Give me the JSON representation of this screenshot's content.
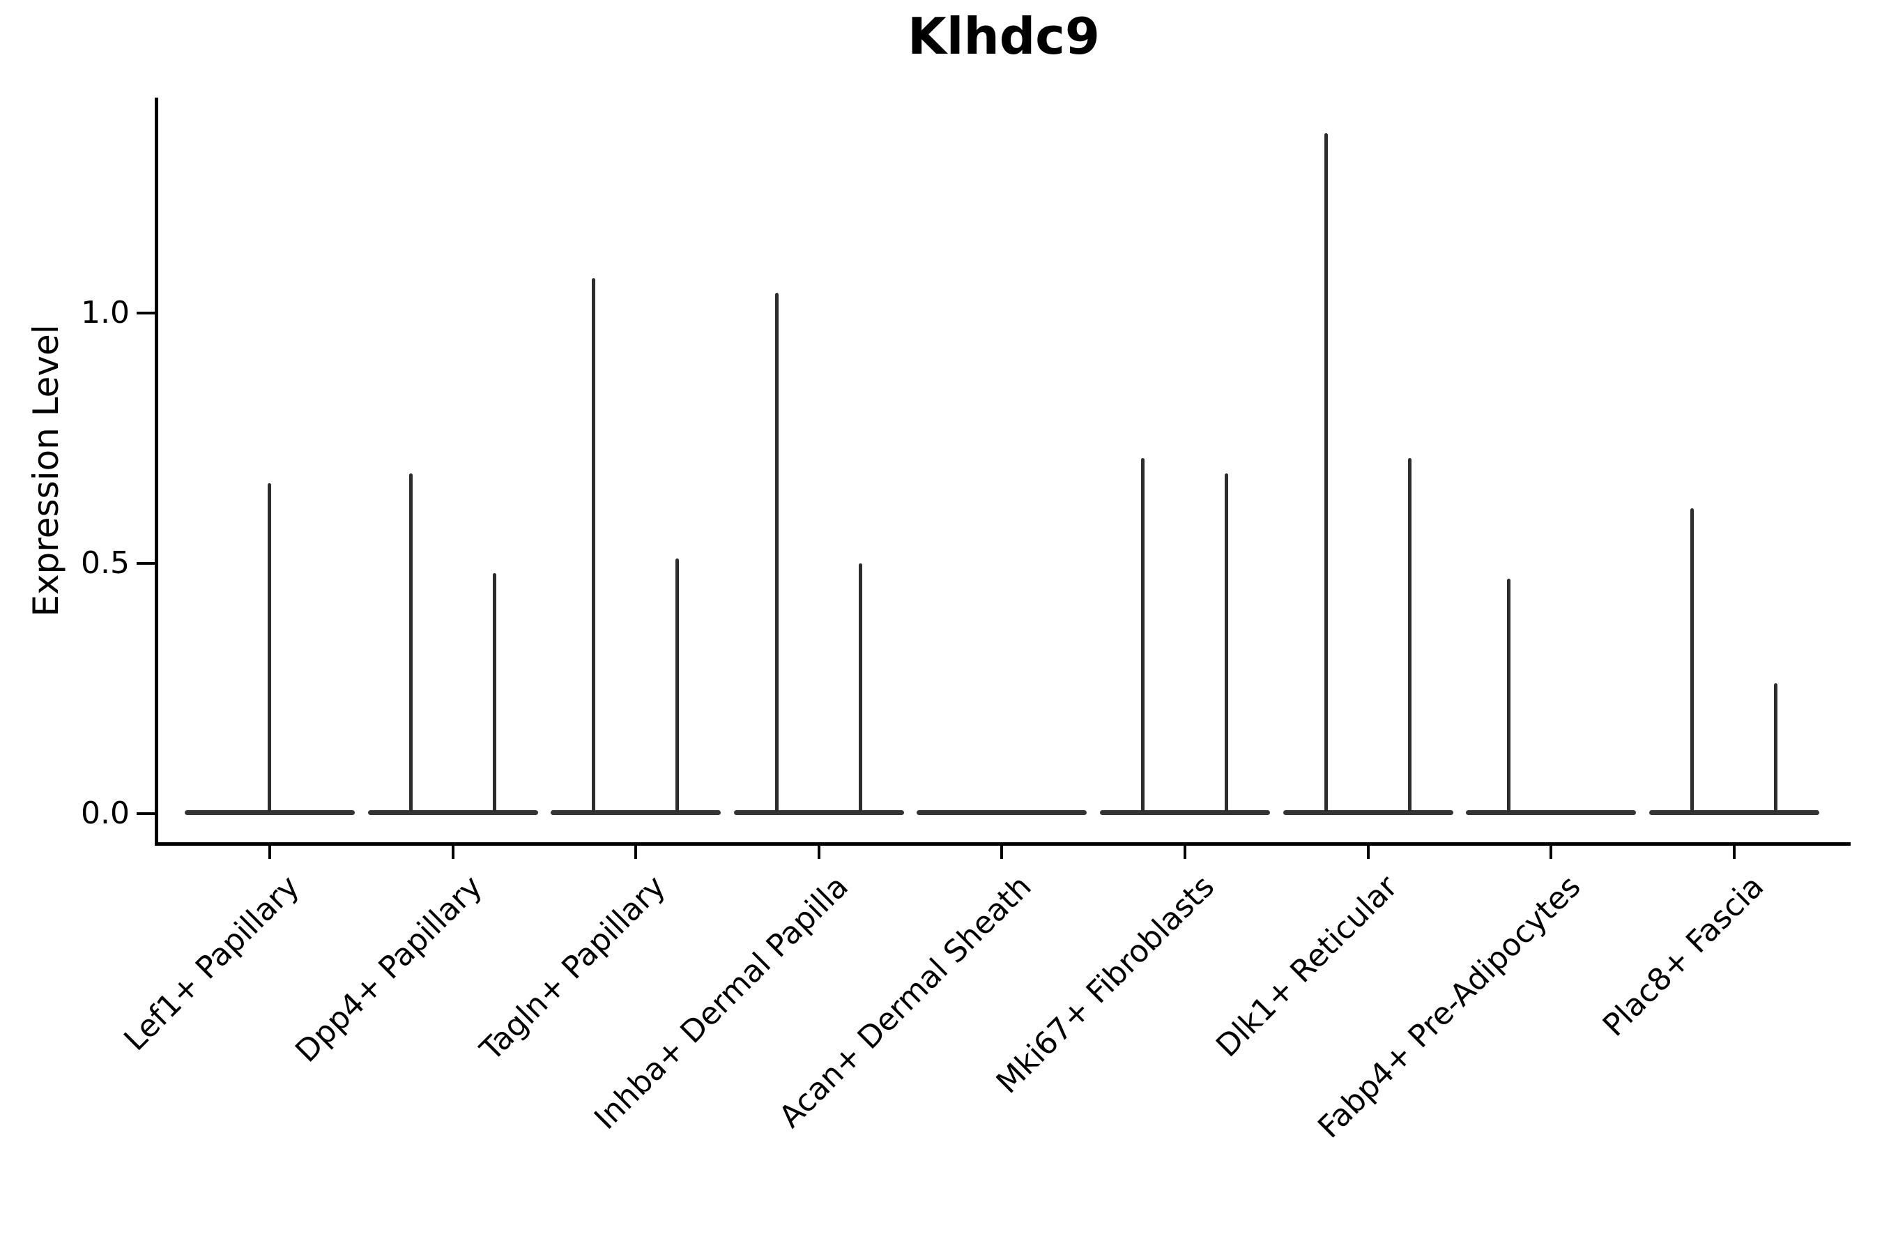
{
  "chart_data": {
    "type": "violin",
    "title": "Klhdc9",
    "ylabel": "Expression Level",
    "xlabel": "",
    "ylim": [
      -0.06,
      1.43
    ],
    "yticks": {
      "values": [
        0.0,
        0.5,
        1.0
      ],
      "labels": [
        "0.0",
        "0.5",
        "1.0"
      ]
    },
    "grid": false,
    "legend": null,
    "spine_color": "#000000",
    "violin_line_color": "#2d2d2d",
    "baseline_value": 0.0,
    "categories": [
      {
        "label": "Lef1+ Papillary",
        "violins": [
          {
            "position": "center",
            "max": 0.66
          }
        ]
      },
      {
        "label": "Dpp4+ Papillary",
        "violins": [
          {
            "position": "left",
            "max": 0.68
          },
          {
            "position": "right",
            "max": 0.48
          }
        ]
      },
      {
        "label": "Tagln+ Papillary",
        "violins": [
          {
            "position": "left",
            "max": 1.07
          },
          {
            "position": "right",
            "max": 0.51
          }
        ]
      },
      {
        "label": "Inhba+ Dermal Papilla",
        "violins": [
          {
            "position": "left",
            "max": 1.04
          },
          {
            "position": "right",
            "max": 0.5
          }
        ]
      },
      {
        "label": "Acan+ Dermal Sheath",
        "violins": []
      },
      {
        "label": "Mki67+ Fibroblasts",
        "violins": [
          {
            "position": "left",
            "max": 0.71
          },
          {
            "position": "right",
            "max": 0.68
          }
        ]
      },
      {
        "label": "Dlk1+ Reticular",
        "violins": [
          {
            "position": "left",
            "max": 1.36
          },
          {
            "position": "right",
            "max": 0.71
          }
        ]
      },
      {
        "label": "Fabp4+ Pre-Adipocytes",
        "violins": [
          {
            "position": "left",
            "max": 0.47
          }
        ]
      },
      {
        "label": "Plac8+ Fascia",
        "violins": [
          {
            "position": "left",
            "max": 0.61
          },
          {
            "position": "right",
            "max": 0.26
          }
        ]
      }
    ]
  }
}
